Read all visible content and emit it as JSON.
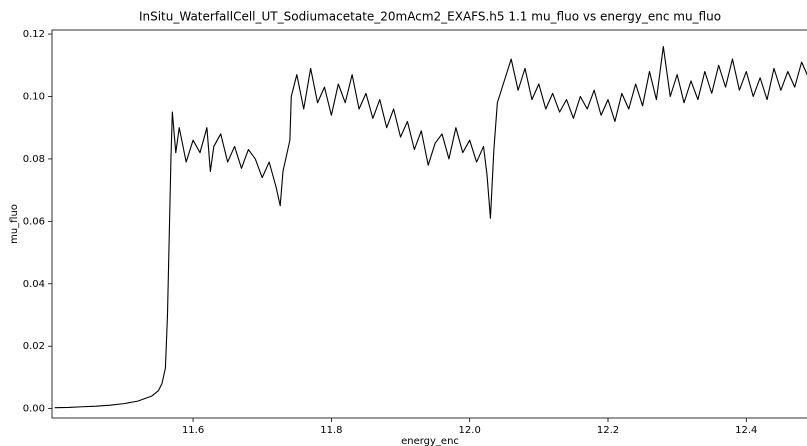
{
  "chart_data": {
    "type": "line",
    "title": "InSitu_WaterfallCell_UT_Sodiumacetate_20mAcm2_EXAFS.h5 1.1 mu_fluo vs energy_enc mu_fluo",
    "x_label": "energy_enc",
    "y_label": "mu_fluo",
    "x": [
      11.4,
      11.42,
      11.44,
      11.46,
      11.48,
      11.5,
      11.52,
      11.54,
      11.55,
      11.555,
      11.56,
      11.563,
      11.566,
      11.568,
      11.57,
      11.575,
      11.58,
      11.59,
      11.6,
      11.61,
      11.62,
      11.625,
      11.63,
      11.64,
      11.65,
      11.66,
      11.67,
      11.68,
      11.69,
      11.7,
      11.71,
      11.72,
      11.726,
      11.73,
      11.74,
      11.742,
      11.75,
      11.76,
      11.77,
      11.78,
      11.79,
      11.8,
      11.81,
      11.82,
      11.83,
      11.84,
      11.85,
      11.86,
      11.87,
      11.88,
      11.89,
      11.9,
      11.91,
      11.92,
      11.93,
      11.94,
      11.95,
      11.96,
      11.97,
      11.98,
      11.99,
      12.0,
      12.01,
      12.02,
      12.025,
      12.03,
      12.035,
      12.04,
      12.05,
      12.06,
      12.07,
      12.08,
      12.09,
      12.1,
      12.11,
      12.12,
      12.13,
      12.14,
      12.15,
      12.16,
      12.17,
      12.18,
      12.19,
      12.2,
      12.21,
      12.22,
      12.23,
      12.24,
      12.25,
      12.26,
      12.27,
      12.28,
      12.29,
      12.3,
      12.31,
      12.32,
      12.33,
      12.34,
      12.35,
      12.36,
      12.37,
      12.38,
      12.39,
      12.4,
      12.41,
      12.42,
      12.43,
      12.44,
      12.45,
      12.46,
      12.47,
      12.48,
      12.49
    ],
    "series": [
      {
        "name": "mu_fluo",
        "color": "#000000",
        "values": [
          0.0003,
          0.0004,
          0.0006,
          0.0008,
          0.0011,
          0.0016,
          0.0024,
          0.004,
          0.0058,
          0.008,
          0.013,
          0.03,
          0.06,
          0.08,
          0.095,
          0.082,
          0.09,
          0.079,
          0.086,
          0.082,
          0.09,
          0.076,
          0.084,
          0.088,
          0.079,
          0.084,
          0.077,
          0.083,
          0.08,
          0.074,
          0.079,
          0.071,
          0.065,
          0.076,
          0.086,
          0.1,
          0.107,
          0.096,
          0.109,
          0.098,
          0.103,
          0.094,
          0.104,
          0.098,
          0.107,
          0.096,
          0.101,
          0.093,
          0.099,
          0.09,
          0.096,
          0.087,
          0.092,
          0.083,
          0.089,
          0.078,
          0.085,
          0.088,
          0.08,
          0.09,
          0.082,
          0.086,
          0.079,
          0.084,
          0.075,
          0.061,
          0.083,
          0.098,
          0.105,
          0.112,
          0.102,
          0.109,
          0.099,
          0.104,
          0.096,
          0.101,
          0.095,
          0.099,
          0.093,
          0.1,
          0.096,
          0.102,
          0.094,
          0.099,
          0.092,
          0.101,
          0.096,
          0.104,
          0.097,
          0.108,
          0.099,
          0.116,
          0.1,
          0.107,
          0.098,
          0.105,
          0.099,
          0.108,
          0.101,
          0.11,
          0.103,
          0.112,
          0.102,
          0.108,
          0.1,
          0.106,
          0.099,
          0.109,
          0.102,
          0.108,
          0.103,
          0.111,
          0.106
        ]
      }
    ],
    "xlim": [
      11.396,
      12.495
    ],
    "ylim": [
      -0.003,
      0.1213
    ],
    "xticks": [
      11.6,
      11.8,
      {
        "value": 12,
        "label": "12.0"
      },
      12.2,
      12.4
    ],
    "yticks": [
      {
        "value": 0,
        "label": "0.00"
      },
      {
        "value": 0.02,
        "label": "0.02"
      },
      {
        "value": 0.04,
        "label": "0.04"
      },
      {
        "value": 0.06,
        "label": "0.06"
      },
      {
        "value": 0.08,
        "label": "0.08"
      },
      {
        "value": 0.1,
        "label": "0.10"
      },
      {
        "value": 0.12,
        "label": "0.12"
      }
    ]
  }
}
